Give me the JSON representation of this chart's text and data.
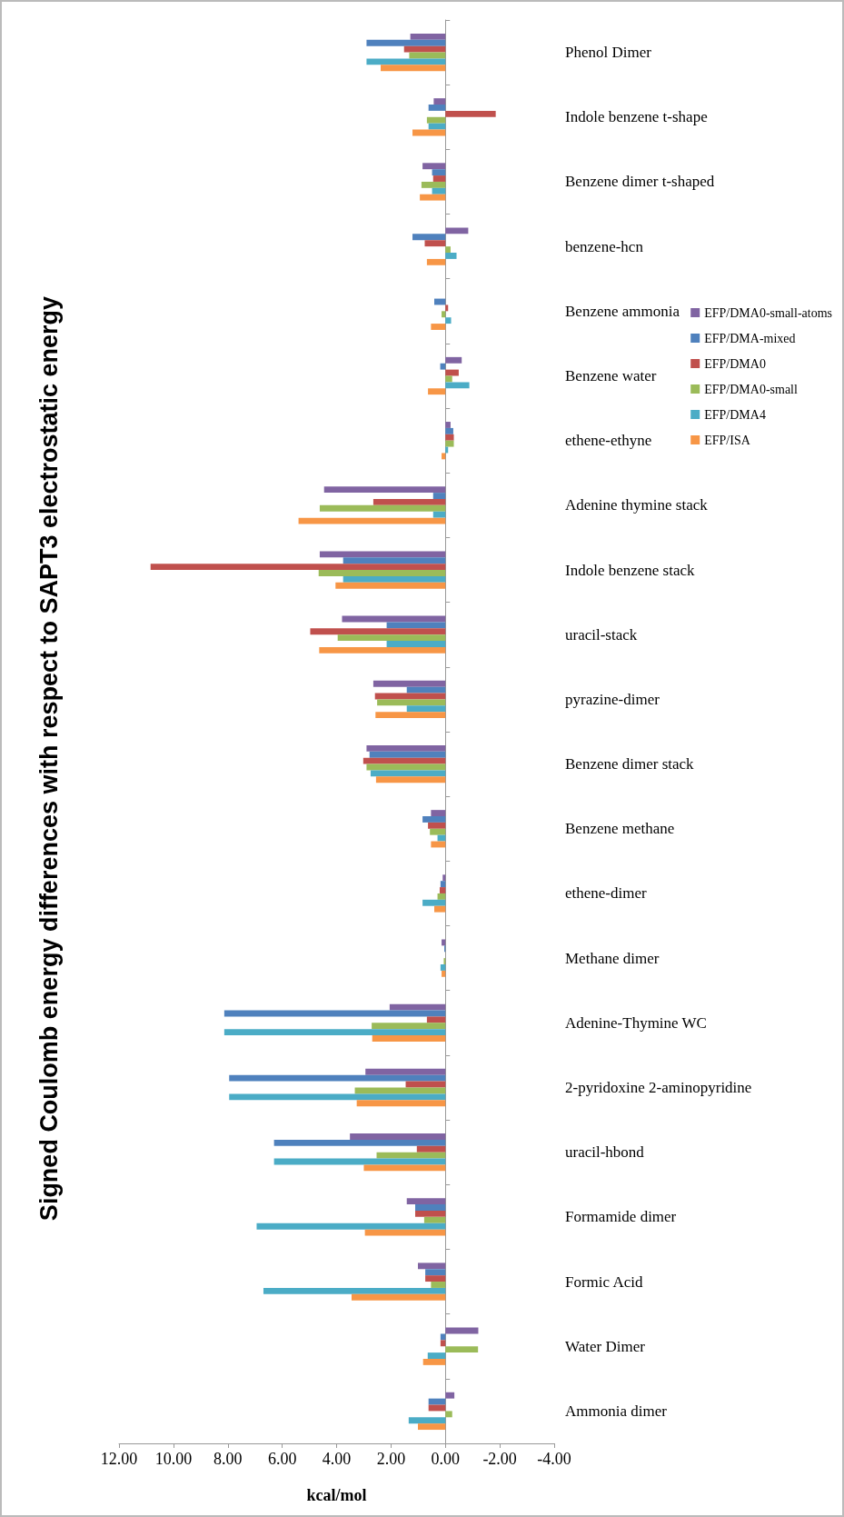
{
  "chart_data": {
    "type": "bar",
    "title": "Signed Coulomb energy differences with respect to SAPT3 electrostatic energy",
    "xlabel": "kcal/mol",
    "categories": [
      "Phenol Dimer",
      "Indole benzene t-shape",
      "Benzene dimer t-shaped",
      "benzene-hcn",
      "Benzene ammonia",
      "Benzene water",
      "ethene-ethyne",
      "Adenine thymine stack",
      "Indole benzene stack",
      "uracil-stack",
      "pyrazine-dimer",
      "Benzene dimer stack",
      "Benzene methane",
      "ethene-dimer",
      "Methane dimer",
      "Adenine-Thymine WC",
      "2-pyridoxine 2-aminopyridine",
      "uracil-hbond",
      "Formamide dimer",
      "Formic Acid",
      "Water Dimer",
      "Ammonia dimer"
    ],
    "series": [
      {
        "name": "EFP/DMA0-small-atoms",
        "color": "#8064a2",
        "values": [
          1.29,
          0.43,
          0.84,
          -0.84,
          0.0,
          -0.6,
          -0.19,
          4.46,
          4.62,
          3.8,
          2.65,
          2.9,
          0.53,
          0.1,
          0.14,
          2.05,
          2.94,
          3.51,
          1.42,
          1.01,
          -1.21,
          -0.33
        ]
      },
      {
        "name": "EFP/DMA-mixed",
        "color": "#4f81bd",
        "values": [
          2.9,
          0.62,
          0.49,
          1.21,
          0.41,
          0.19,
          -0.29,
          0.45,
          3.76,
          2.16,
          1.42,
          2.79,
          0.84,
          0.18,
          0.04,
          8.13,
          7.95,
          6.3,
          1.11,
          0.74,
          0.18,
          0.62
        ]
      },
      {
        "name": "EFP/DMA0",
        "color": "#c0504d",
        "values": [
          1.52,
          -1.85,
          0.45,
          0.76,
          -0.1,
          -0.49,
          -0.31,
          2.65,
          10.84,
          4.97,
          2.59,
          3.02,
          0.64,
          0.21,
          null,
          0.68,
          1.46,
          1.05,
          1.11,
          0.74,
          0.18,
          0.62
        ]
      },
      {
        "name": "EFP/DMA0-small",
        "color": "#9bbb59",
        "values": [
          1.33,
          0.68,
          0.88,
          -0.19,
          0.14,
          -0.25,
          -0.31,
          4.62,
          4.66,
          3.96,
          2.51,
          2.9,
          0.57,
          0.29,
          0.06,
          2.71,
          3.33,
          2.53,
          0.78,
          0.53,
          -1.2,
          -0.25
        ]
      },
      {
        "name": "EFP/DMA4",
        "color": "#4bacc6",
        "values": [
          2.9,
          0.62,
          0.49,
          -0.41,
          -0.21,
          -0.88,
          -0.1,
          0.45,
          3.76,
          2.16,
          1.42,
          2.75,
          0.29,
          0.84,
          0.18,
          8.13,
          7.95,
          6.3,
          6.94,
          6.69,
          0.65,
          1.35
        ]
      },
      {
        "name": "EFP/ISA",
        "color": "#f79646",
        "values": [
          2.38,
          1.21,
          0.94,
          0.68,
          0.53,
          0.64,
          0.14,
          5.4,
          4.04,
          4.64,
          2.57,
          2.55,
          0.53,
          0.41,
          0.14,
          2.69,
          3.26,
          3.0,
          2.96,
          3.45,
          0.82,
          1.01
        ]
      }
    ],
    "orientation": "horizontal",
    "xlim": [
      12,
      -4
    ],
    "xticks": [
      {
        "value": -4,
        "label": "-4.00"
      },
      {
        "value": -2,
        "label": "-2.00"
      },
      {
        "value": 0,
        "label": "0.00"
      },
      {
        "value": 2,
        "label": "2.00"
      },
      {
        "value": 4,
        "label": "4.00"
      },
      {
        "value": 6,
        "label": "6.00"
      },
      {
        "value": 8,
        "label": "8.00"
      },
      {
        "value": 10,
        "label": "10.00"
      },
      {
        "value": 12,
        "label": "12.00"
      }
    ],
    "legend": "right"
  }
}
